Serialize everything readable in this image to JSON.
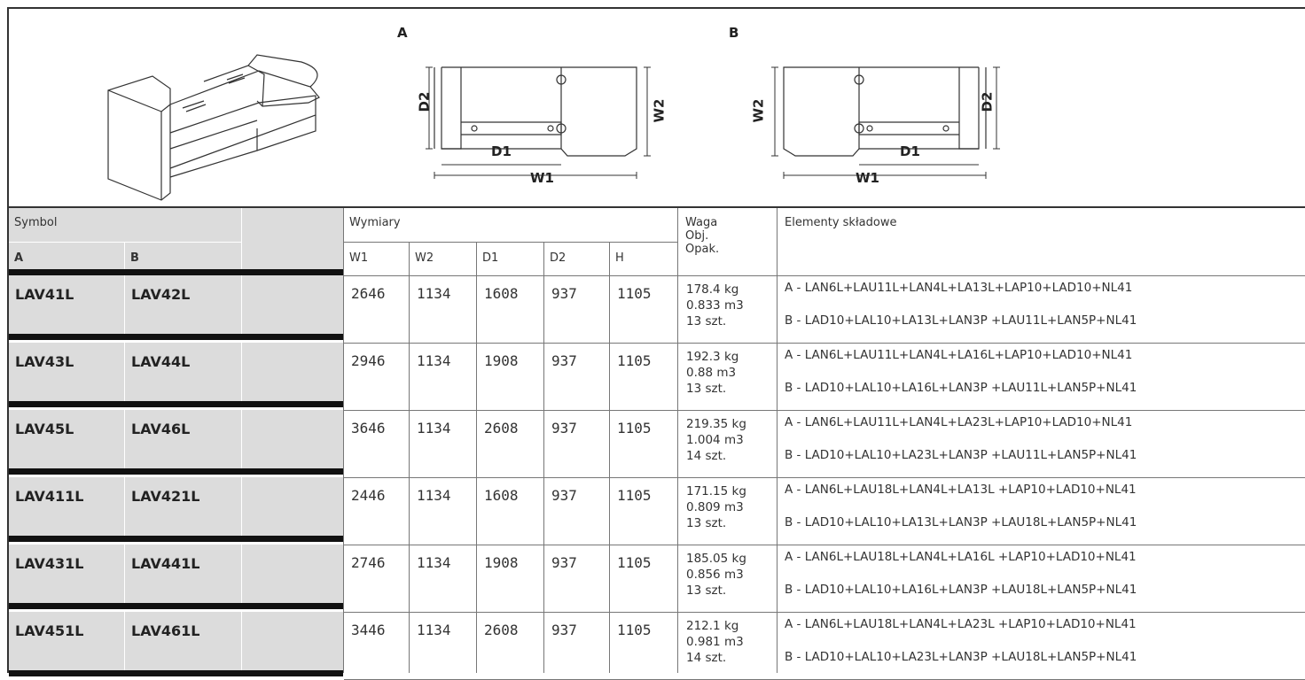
{
  "diagrams": {
    "label_a": "A",
    "label_b": "B",
    "dims": {
      "d1": "D1",
      "d2": "D2",
      "w1": "W1",
      "w2": "W2"
    }
  },
  "header": {
    "symbol": "Symbol",
    "col_a": "A",
    "col_b": "B",
    "wymiary": "Wymiary",
    "w1": "W1",
    "w2": "W2",
    "d1": "D1",
    "d2": "D2",
    "h": "H",
    "waga": "Waga",
    "obj": "Obj.",
    "opak": "Opak.",
    "elementy": "Elementy składowe"
  },
  "rows": [
    {
      "a": "LAV41L",
      "b": "LAV42L",
      "w1": "2646",
      "w2": "1134",
      "d1": "1608",
      "d2": "937",
      "h": "1105",
      "weight": "178.4 kg",
      "volume": "0.833 m3",
      "packs": "13 szt.",
      "el_a": "A - LAN6L+LAU11L+LAN4L+LA13L+LAP10+LAD10+NL41",
      "el_b": "B - LAD10+LAL10+LA13L+LAN3P +LAU11L+LAN5P+NL41"
    },
    {
      "a": "LAV43L",
      "b": "LAV44L",
      "w1": "2946",
      "w2": "1134",
      "d1": "1908",
      "d2": "937",
      "h": "1105",
      "weight": "192.3 kg",
      "volume": "0.88 m3",
      "packs": "13 szt.",
      "el_a": "A - LAN6L+LAU11L+LAN4L+LA16L+LAP10+LAD10+NL41",
      "el_b": "B - LAD10+LAL10+LA16L+LAN3P +LAU11L+LAN5P+NL41"
    },
    {
      "a": "LAV45L",
      "b": "LAV46L",
      "w1": "3646",
      "w2": "1134",
      "d1": "2608",
      "d2": "937",
      "h": "1105",
      "weight": "219.35 kg",
      "volume": "1.004 m3",
      "packs": "14 szt.",
      "el_a": "A - LAN6L+LAU11L+LAN4L+LA23L+LAP10+LAD10+NL41",
      "el_b": "B - LAD10+LAL10+LA23L+LAN3P +LAU11L+LAN5P+NL41"
    },
    {
      "a": "LAV411L",
      "b": "LAV421L",
      "w1": "2446",
      "w2": "1134",
      "d1": "1608",
      "d2": "937",
      "h": "1105",
      "weight": "171.15 kg",
      "volume": "0.809 m3",
      "packs": "13 szt.",
      "el_a": "A - LAN6L+LAU18L+LAN4L+LA13L +LAP10+LAD10+NL41",
      "el_b": "B - LAD10+LAL10+LA13L+LAN3P +LAU18L+LAN5P+NL41"
    },
    {
      "a": "LAV431L",
      "b": "LAV441L",
      "w1": "2746",
      "w2": "1134",
      "d1": "1908",
      "d2": "937",
      "h": "1105",
      "weight": "185.05 kg",
      "volume": "0.856 m3",
      "packs": "13 szt.",
      "el_a": "A - LAN6L+LAU18L+LAN4L+LA16L +LAP10+LAD10+NL41",
      "el_b": "B - LAD10+LAL10+LA16L+LAN3P +LAU18L+LAN5P+NL41"
    },
    {
      "a": "LAV451L",
      "b": "LAV461L",
      "w1": "3446",
      "w2": "1134",
      "d1": "2608",
      "d2": "937",
      "h": "1105",
      "weight": "212.1 kg",
      "volume": "0.981 m3",
      "packs": "14 szt.",
      "el_a": "A - LAN6L+LAU18L+LAN4L+LA23L +LAP10+LAD10+NL41",
      "el_b": "B - LAD10+LAL10+LA23L+LAN3P +LAU18L+LAN5P+NL41"
    }
  ]
}
